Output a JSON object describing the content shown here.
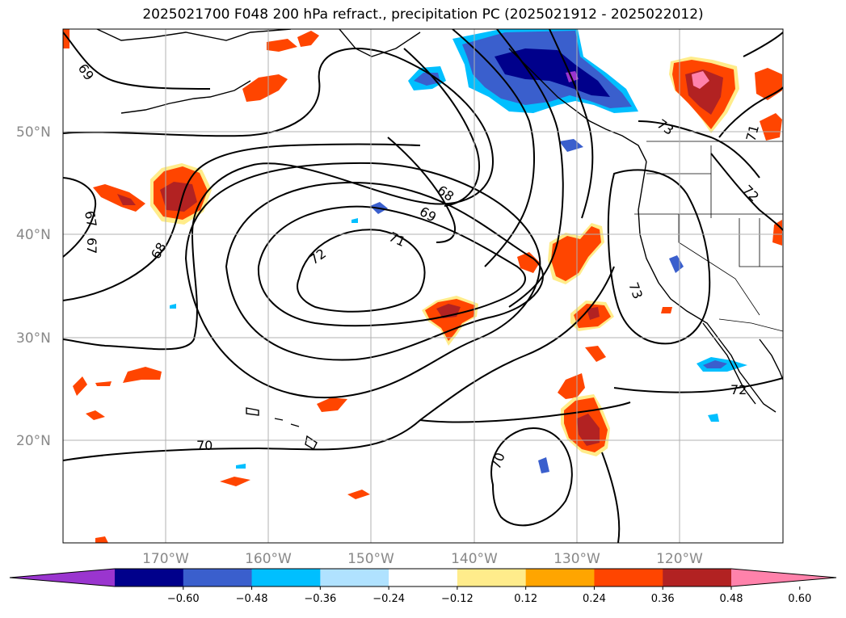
{
  "title": "2025021700 F048 200 hPa refract., precipitation PC (2025021912 - 2025022012)",
  "map": {
    "lat_labels": [
      "50°N",
      "40°N",
      "30°N",
      "20°N"
    ],
    "lon_labels": [
      "170°W",
      "160°W",
      "150°W",
      "140°W",
      "130°W",
      "120°W"
    ],
    "contour_labels": [
      "69",
      "67",
      "67",
      "68",
      "68",
      "69",
      "71",
      "72",
      "70",
      "70",
      "73",
      "73",
      "72",
      "71",
      "72"
    ]
  },
  "colorbar": {
    "ticks": [
      "−0.60",
      "−0.48",
      "−0.36",
      "−0.24",
      "−0.12",
      "0.12",
      "0.24",
      "0.36",
      "0.48",
      "0.60"
    ],
    "colors": [
      "#9a35cf",
      "#00008b",
      "#3a5fcd",
      "#00bfff",
      "#b0e2ff",
      "#ffffff",
      "#ffec8b",
      "#ffa500",
      "#ff4500",
      "#b22222",
      "#ff82ab"
    ]
  }
}
